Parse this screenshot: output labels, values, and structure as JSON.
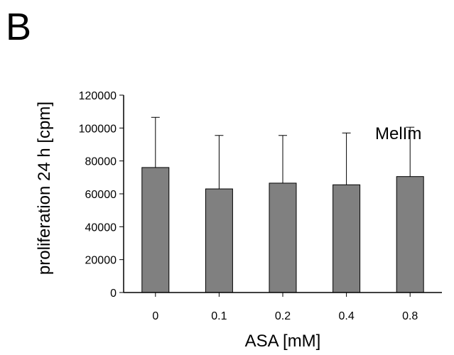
{
  "panel_label": "B",
  "chart_data": {
    "type": "bar",
    "categories": [
      "0",
      "0.1",
      "0.2",
      "0.4",
      "0.8"
    ],
    "values": [
      76000,
      63000,
      66500,
      65500,
      70500
    ],
    "error_upper": [
      106500,
      95500,
      95500,
      97000,
      100500
    ],
    "xlabel": "ASA [mM]",
    "ylabel": "proliferation 24 h  [cpm]",
    "annotation": "MelIm",
    "ylim": [
      0,
      120000
    ],
    "yticks": [
      0,
      20000,
      40000,
      60000,
      80000,
      100000,
      120000
    ],
    "ytick_labels": [
      "0",
      "20000",
      "40000",
      "60000",
      "80000",
      "100000",
      "120000"
    ],
    "bar_color": "#808080",
    "grid": false,
    "legend": "none"
  }
}
